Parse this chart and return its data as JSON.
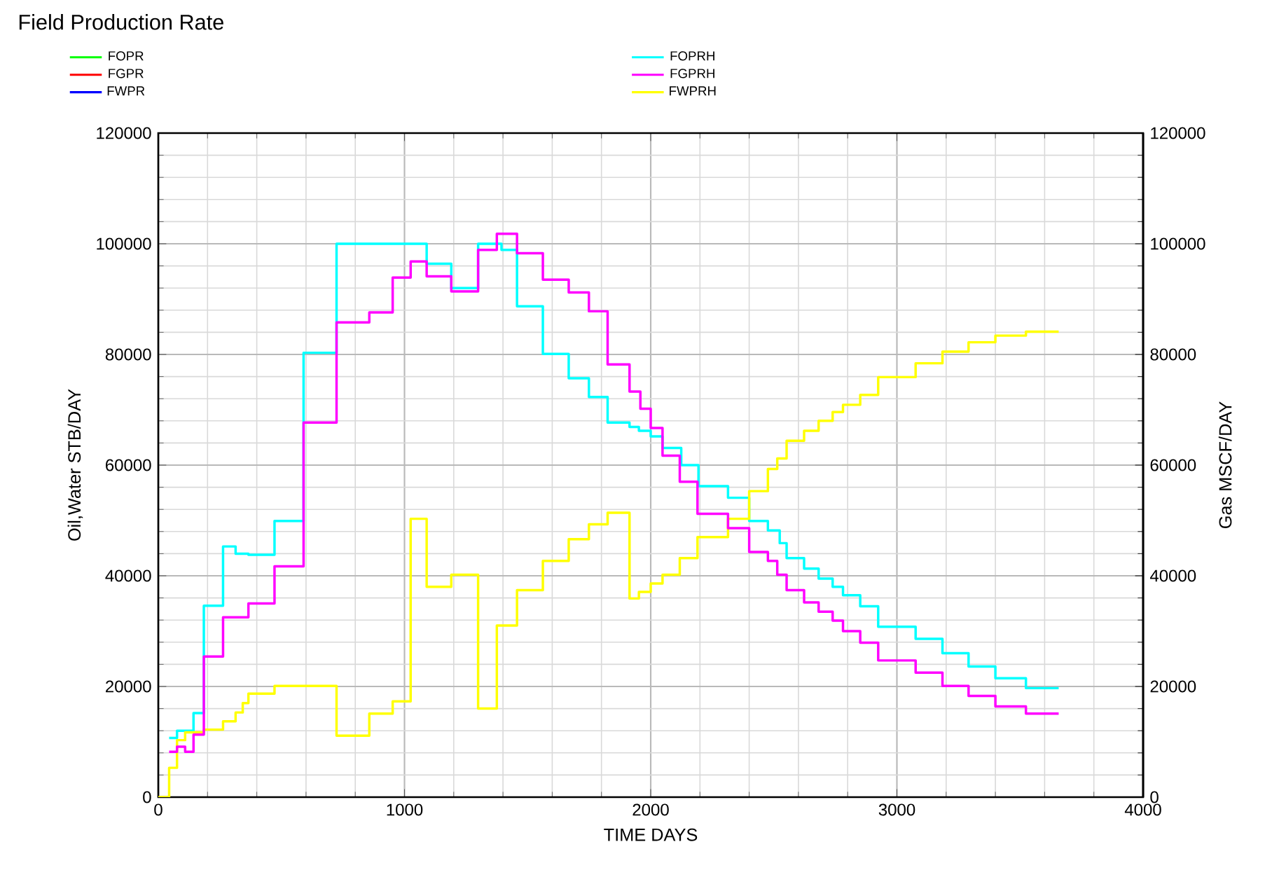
{
  "chart_data": {
    "type": "step",
    "title": "Field Production Rate",
    "xlabel": "TIME   DAYS",
    "ylabel": "Oil,Water   STB/DAY",
    "y2label": "Gas   MSCF/DAY",
    "xlim": [
      0,
      4000
    ],
    "xticks": [
      0,
      1000,
      2000,
      3000,
      4000
    ],
    "ylim": [
      0,
      120000
    ],
    "yticks": [
      0,
      20000,
      40000,
      60000,
      80000,
      100000,
      120000
    ],
    "y2lim": [
      0,
      120000
    ],
    "y2ticks": [
      0,
      20000,
      40000,
      60000,
      80000,
      100000,
      120000
    ],
    "grid": true,
    "legend": "top",
    "series": [
      {
        "name": "FOPR",
        "color": "#00ff00"
      },
      {
        "name": "FGPR",
        "color": "#ff0000",
        "axis": "y2"
      },
      {
        "name": "FWPR",
        "color": "#0000ff"
      },
      {
        "name": "FOPRH",
        "color": "#00ffff",
        "x": [
          44,
          76,
          143,
          185,
          263,
          314,
          366,
          472,
          590,
          724,
          1090,
          1190,
          1299,
          1394,
          1457,
          1562,
          1667,
          1749,
          1825,
          1914,
          1952,
          2000,
          2048,
          2124,
          2194,
          2314,
          2400,
          2476,
          2524,
          2552,
          2623,
          2682,
          2739,
          2781,
          2851,
          2924,
          3076,
          3185,
          3291,
          3400,
          3524,
          3657
        ],
        "values": [
          10700,
          12000,
          15200,
          34600,
          45300,
          44000,
          43800,
          49900,
          80300,
          100000,
          96400,
          92000,
          100000,
          98900,
          88700,
          80100,
          75700,
          72300,
          67700,
          66900,
          66200,
          65200,
          63100,
          60000,
          56200,
          54100,
          49900,
          48200,
          45900,
          43200,
          41300,
          39500,
          38000,
          36500,
          34500,
          30800,
          28600,
          26000,
          23600,
          21500,
          19700,
          19700
        ]
      },
      {
        "name": "FGPRH",
        "color": "#ff00ff",
        "axis": "y2",
        "x": [
          44,
          76,
          109,
          143,
          185,
          263,
          366,
          472,
          590,
          724,
          857,
          952,
          1025,
          1090,
          1190,
          1299,
          1375,
          1457,
          1562,
          1667,
          1749,
          1825,
          1914,
          1958,
          2000,
          2048,
          2118,
          2190,
          2314,
          2400,
          2476,
          2514,
          2552,
          2623,
          2682,
          2739,
          2781,
          2851,
          2924,
          3076,
          3185,
          3291,
          3400,
          3524,
          3657
        ],
        "values": [
          8200,
          9100,
          8200,
          11300,
          25400,
          32500,
          35000,
          41700,
          67700,
          85800,
          87600,
          93900,
          96800,
          94100,
          91400,
          98900,
          101800,
          98300,
          93500,
          91200,
          87800,
          78200,
          73300,
          70200,
          66700,
          61700,
          57000,
          51200,
          48600,
          44300,
          42700,
          40200,
          37400,
          35200,
          33500,
          31900,
          30000,
          27900,
          24700,
          22500,
          20100,
          18300,
          16400,
          15100,
          15100
        ]
      },
      {
        "name": "FWPRH",
        "color": "#ffff00",
        "x": [
          0,
          44,
          76,
          109,
          185,
          263,
          314,
          343,
          366,
          472,
          724,
          857,
          952,
          1025,
          1090,
          1190,
          1299,
          1375,
          1457,
          1562,
          1667,
          1749,
          1825,
          1914,
          1952,
          2000,
          2048,
          2118,
          2190,
          2314,
          2400,
          2476,
          2514,
          2552,
          2623,
          2682,
          2739,
          2781,
          2851,
          2924,
          3076,
          3185,
          3291,
          3400,
          3524,
          3657
        ],
        "values": [
          0,
          5300,
          10300,
          11700,
          12200,
          13700,
          15300,
          17000,
          18700,
          20100,
          11100,
          15100,
          17300,
          50300,
          38000,
          40200,
          16000,
          31000,
          37400,
          42700,
          46600,
          49300,
          51400,
          35900,
          37100,
          38600,
          40200,
          43200,
          47000,
          50300,
          55300,
          59300,
          61200,
          64400,
          66200,
          68000,
          69600,
          70900,
          72700,
          75900,
          78400,
          80500,
          82200,
          83400,
          84100,
          84100
        ]
      }
    ]
  }
}
